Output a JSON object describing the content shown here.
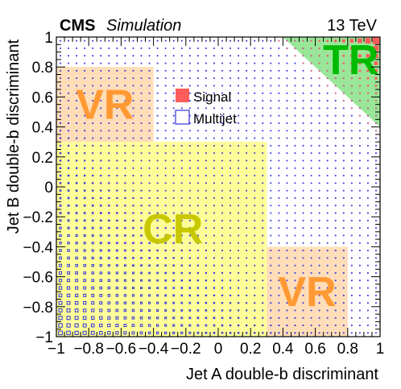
{
  "header": {
    "experiment": "CMS",
    "status": "Simulation",
    "energy": "13 TeV"
  },
  "legend": {
    "entries": [
      {
        "name": "Signal",
        "color": "#ff5c5c",
        "style": "filled-box"
      },
      {
        "name": "Multijet",
        "color": "#3333dd",
        "style": "open-box"
      }
    ]
  },
  "chart_data": {
    "type": "heatmap",
    "xlabel": "Jet A double-b discriminant",
    "ylabel": "Jet B double-b discriminant",
    "xlim": [
      -1,
      1
    ],
    "ylim": [
      -1,
      1
    ],
    "xticks": [
      "−1",
      "−0.8",
      "−0.6",
      "−0.4",
      "−0.2",
      "0",
      "0.2",
      "0.4",
      "0.6",
      "0.8",
      "1"
    ],
    "yticks": [
      "−1",
      "−0.8",
      "−0.6",
      "−0.4",
      "−0.2",
      "0",
      "0.2",
      "0.4",
      "0.6",
      "0.8",
      "1"
    ],
    "tick_values": [
      -1,
      -0.8,
      -0.6,
      -0.4,
      -0.2,
      0,
      0.2,
      0.4,
      0.6,
      0.8,
      1
    ],
    "bins": 40,
    "regions": [
      {
        "label": "CR",
        "x": [
          -1,
          0.3
        ],
        "y": [
          -1,
          0.3
        ],
        "fill": "#ffff99",
        "text_color": "#c8c800"
      },
      {
        "label": "VR",
        "x": [
          -1,
          -0.4
        ],
        "y": [
          0.3,
          0.8
        ],
        "fill": "#ffddb8",
        "text_color": "#ff9933"
      },
      {
        "label": "VR",
        "x": [
          0.3,
          0.8
        ],
        "y": [
          -1,
          -0.4
        ],
        "fill": "#ffddb8",
        "text_color": "#ff9933"
      },
      {
        "label": "TR",
        "triangle": [
          [
            0.4,
            1
          ],
          [
            1,
            1
          ],
          [
            1,
            0.4
          ]
        ],
        "fill": "#99e699",
        "text_color": "#00bb00"
      }
    ],
    "series": [
      {
        "name": "Multijet",
        "color": "#3333dd",
        "description": "open boxes on 40x40 grid; box size largest at low discriminant values (jet A, jet B near -1), shrinking to tiny dots at high values",
        "max_box_fraction_of_bin": 0.5,
        "min_box_fraction_of_bin": 0.08
      },
      {
        "name": "Signal",
        "color": "#ff5c5c",
        "description": "filled boxes concentrated where x + y > 1.3, growing toward (1, 1)",
        "threshold_sum": 1.3,
        "max_box_fraction_of_bin": 1.0
      }
    ],
    "grid": false
  }
}
